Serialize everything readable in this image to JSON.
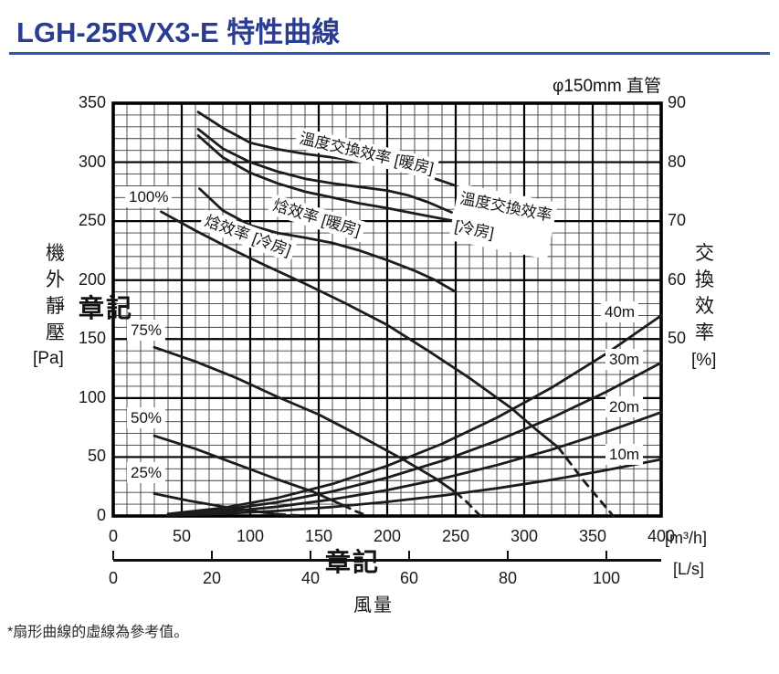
{
  "page": {
    "title": "LGH-25RVX3-E 特性曲線",
    "footnote": "*扇形曲線的虛線為參考值。",
    "watermark": "章記",
    "accent_color": "#2b3d92"
  },
  "chart": {
    "subtitle": "φ150mm 直管",
    "x_axis_title": "風量",
    "y_left_title": "機外靜壓",
    "y_left_unit": "[Pa]",
    "y_right_title": "交換效率",
    "y_right_unit": "[%]",
    "x_primary_unit": "[m³/h]",
    "x_secondary_unit": "[L/s]"
  },
  "curve_labels": {
    "temp_heating": "溫度交換效率 [暖房]",
    "temp_cooling_line1": "溫度交換效率",
    "temp_cooling_line2": "[冷房]",
    "enthalpy_heating": "焓效率 [暖房]",
    "enthalpy_cooling": "焓效率 [冷房]",
    "fan_100": "100%",
    "fan_75": "75%",
    "fan_50": "50%",
    "fan_25": "25%",
    "duct_40": "40m",
    "duct_30": "30m",
    "duct_20": "20m",
    "duct_10": "10m"
  },
  "chart_data": {
    "type": "line",
    "title": "LGH-25RVX3-E 特性曲線",
    "subtitle": "φ150mm 直管",
    "x_axis": {
      "label": "風量",
      "primary_unit": "[m³/h]",
      "primary_range": [
        0,
        400
      ],
      "primary_ticks": [
        0,
        50,
        100,
        150,
        200,
        250,
        300,
        350,
        400
      ],
      "secondary_unit": "[L/s]",
      "secondary_ticks": [
        0,
        20,
        40,
        60,
        80,
        100
      ]
    },
    "y_left": {
      "label": "機外靜壓",
      "unit": "[Pa]",
      "range": [
        0,
        350
      ],
      "ticks": [
        350,
        300,
        250,
        200,
        150,
        100,
        50,
        0
      ]
    },
    "y_right": {
      "label": "交換效率",
      "unit": "[%]",
      "ticks": [
        90,
        80,
        70,
        60,
        50
      ],
      "mapping": "eff_percent = 20 + Pa / 5"
    },
    "grid": {
      "minor_step_x": 10,
      "major_step_x": 50,
      "minor_step_y_pa": 10,
      "major_step_y_pa": 50
    },
    "note": "*扇形曲線的虛線為參考值。",
    "series": [
      {
        "id": "temp-exchange-heating",
        "label": "溫度交換效率 [暖房]",
        "axis": "eff",
        "style": "solid",
        "points": [
          [
            62,
            88.5
          ],
          [
            80,
            85.8
          ],
          [
            100,
            83.3
          ],
          [
            120,
            82.2
          ],
          [
            140,
            81.4
          ],
          [
            160,
            80.8
          ],
          [
            180,
            80.2
          ],
          [
            200,
            79.4
          ],
          [
            220,
            78.2
          ],
          [
            235,
            77.2
          ],
          [
            249,
            76.1
          ]
        ]
      },
      {
        "id": "temp-exchange-cooling",
        "label": "溫度交換效率 [冷房]",
        "axis": "eff",
        "style": "solid",
        "points": [
          [
            62,
            85.6
          ],
          [
            80,
            82.3
          ],
          [
            100,
            80.0
          ],
          [
            120,
            78.4
          ],
          [
            140,
            77.2
          ],
          [
            160,
            76.4
          ],
          [
            180,
            75.8
          ],
          [
            200,
            75.2
          ],
          [
            215,
            74.4
          ],
          [
            230,
            73.2
          ],
          [
            247,
            71.5
          ]
        ]
      },
      {
        "id": "enthalpy-heating",
        "label": "焓效率 [暖房]",
        "axis": "eff",
        "style": "solid",
        "points": [
          [
            62,
            84.5
          ],
          [
            80,
            80.8
          ],
          [
            100,
            78.2
          ],
          [
            120,
            76.4
          ],
          [
            140,
            75.0
          ],
          [
            160,
            74.0
          ],
          [
            180,
            73.0
          ],
          [
            200,
            72.2
          ],
          [
            220,
            71.3
          ],
          [
            247,
            70.1
          ]
        ]
      },
      {
        "id": "enthalpy-cooling",
        "label": "焓效率 [冷房]",
        "axis": "eff",
        "style": "solid",
        "points": [
          [
            63,
            75.5
          ],
          [
            80,
            71.8
          ],
          [
            100,
            69.3
          ],
          [
            120,
            68.0
          ],
          [
            140,
            67.2
          ],
          [
            160,
            66.3
          ],
          [
            180,
            65.0
          ],
          [
            200,
            63.4
          ],
          [
            220,
            61.6
          ],
          [
            235,
            60.0
          ],
          [
            250,
            58.0
          ]
        ]
      },
      {
        "id": "fan-100",
        "label": "100%",
        "axis": "pa",
        "style": "solid",
        "points": [
          [
            35,
            258
          ],
          [
            60,
            242
          ],
          [
            85,
            227
          ],
          [
            110,
            213
          ],
          [
            140,
            197
          ],
          [
            170,
            180
          ],
          [
            200,
            162
          ],
          [
            230,
            140
          ],
          [
            260,
            117
          ],
          [
            290,
            92
          ],
          [
            310,
            72
          ],
          [
            325,
            58
          ]
        ]
      },
      {
        "id": "fan-100-ref",
        "label": "100% 參考",
        "axis": "pa",
        "style": "dashed",
        "points": [
          [
            325,
            58
          ],
          [
            342,
            32
          ],
          [
            352,
            18
          ],
          [
            365,
            0
          ]
        ]
      },
      {
        "id": "fan-75",
        "label": "75%",
        "axis": "pa",
        "style": "solid",
        "points": [
          [
            30,
            143
          ],
          [
            60,
            131
          ],
          [
            90,
            117
          ],
          [
            120,
            101
          ],
          [
            150,
            86
          ],
          [
            180,
            68
          ],
          [
            210,
            49
          ],
          [
            235,
            32
          ],
          [
            250,
            20
          ]
        ]
      },
      {
        "id": "fan-75-ref",
        "label": "75% 參考",
        "axis": "pa",
        "style": "dashed",
        "points": [
          [
            250,
            20
          ],
          [
            258,
            12
          ],
          [
            268,
            0
          ]
        ]
      },
      {
        "id": "fan-50",
        "label": "50%",
        "axis": "pa",
        "style": "solid",
        "points": [
          [
            30,
            68
          ],
          [
            60,
            57
          ],
          [
            90,
            44
          ],
          [
            120,
            31
          ],
          [
            145,
            21
          ],
          [
            168,
            9
          ]
        ]
      },
      {
        "id": "fan-50-ref",
        "label": "50% 參考",
        "axis": "pa",
        "style": "dashed",
        "points": [
          [
            168,
            9
          ],
          [
            177,
            4
          ],
          [
            186,
            0
          ]
        ]
      },
      {
        "id": "fan-25",
        "label": "25%",
        "axis": "pa",
        "style": "solid",
        "points": [
          [
            30,
            19
          ],
          [
            55,
            13
          ],
          [
            80,
            8
          ],
          [
            100,
            4.5
          ],
          [
            120,
            1.5
          ]
        ]
      },
      {
        "id": "fan-25-ref",
        "label": "25% 參考",
        "axis": "pa",
        "style": "dashed",
        "points": [
          [
            120,
            1.5
          ],
          [
            135,
            0.5
          ]
        ]
      },
      {
        "id": "duct-40m",
        "label": "40m",
        "axis": "pa",
        "style": "solid",
        "points": [
          [
            40,
            1.7
          ],
          [
            80,
            6.8
          ],
          [
            120,
            15.3
          ],
          [
            160,
            27.2
          ],
          [
            200,
            42.5
          ],
          [
            240,
            61.2
          ],
          [
            280,
            83.3
          ],
          [
            320,
            108.8
          ],
          [
            360,
            137.7
          ],
          [
            400,
            170
          ]
        ]
      },
      {
        "id": "duct-30m",
        "label": "30m",
        "axis": "pa",
        "style": "solid",
        "points": [
          [
            40,
            1.3
          ],
          [
            80,
            5.2
          ],
          [
            120,
            11.7
          ],
          [
            160,
            20.8
          ],
          [
            200,
            32.5
          ],
          [
            240,
            46.8
          ],
          [
            280,
            63.7
          ],
          [
            320,
            83.2
          ],
          [
            360,
            105.3
          ],
          [
            400,
            130
          ]
        ]
      },
      {
        "id": "duct-20m",
        "label": "20m",
        "axis": "pa",
        "style": "solid",
        "points": [
          [
            40,
            0.9
          ],
          [
            80,
            3.5
          ],
          [
            120,
            7.9
          ],
          [
            160,
            14.1
          ],
          [
            200,
            22
          ],
          [
            240,
            31.7
          ],
          [
            280,
            43.1
          ],
          [
            320,
            56.3
          ],
          [
            360,
            71.3
          ],
          [
            400,
            88
          ]
        ]
      },
      {
        "id": "duct-10m",
        "label": "10m",
        "axis": "pa",
        "style": "solid",
        "points": [
          [
            40,
            0.5
          ],
          [
            80,
            1.9
          ],
          [
            120,
            4.3
          ],
          [
            160,
            7.7
          ],
          [
            200,
            12
          ],
          [
            240,
            17.3
          ],
          [
            280,
            23.5
          ],
          [
            320,
            30.7
          ],
          [
            360,
            38.9
          ],
          [
            400,
            48
          ]
        ]
      }
    ]
  }
}
